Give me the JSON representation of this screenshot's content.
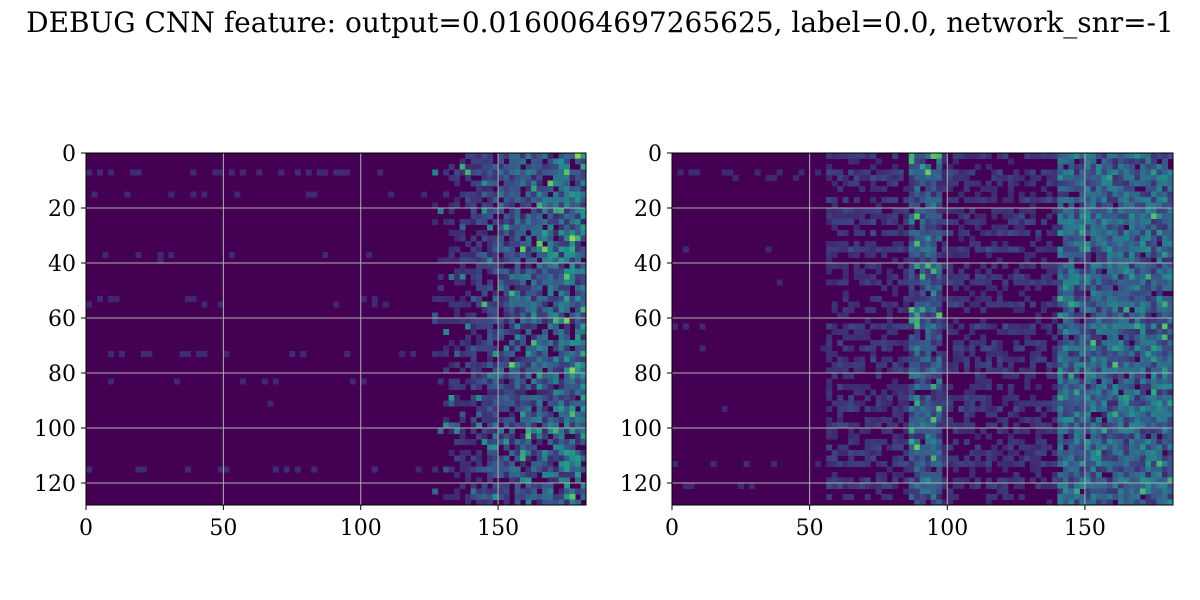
{
  "title": "DEBUG CNN feature: output=0.0160064697265625, label=0.0, network_snr=-1",
  "chart_data": [
    {
      "type": "heatmap",
      "colormap": "viridis",
      "xlim": [
        0,
        182
      ],
      "ylim": [
        128,
        0
      ],
      "xticks": [
        0,
        50,
        100,
        150
      ],
      "yticks": [
        0,
        20,
        40,
        60,
        80,
        100,
        120
      ],
      "grid": true,
      "description": "left panel: activity concentrated at x > 130"
    },
    {
      "type": "heatmap",
      "colormap": "viridis",
      "xlim": [
        0,
        182
      ],
      "ylim": [
        128,
        0
      ],
      "xticks": [
        0,
        50,
        100,
        150
      ],
      "yticks": [
        0,
        20,
        40,
        60,
        80,
        100,
        120
      ],
      "grid": true,
      "description": "right panel: vertical band near x ~ 90 and activity at x > 140"
    }
  ]
}
